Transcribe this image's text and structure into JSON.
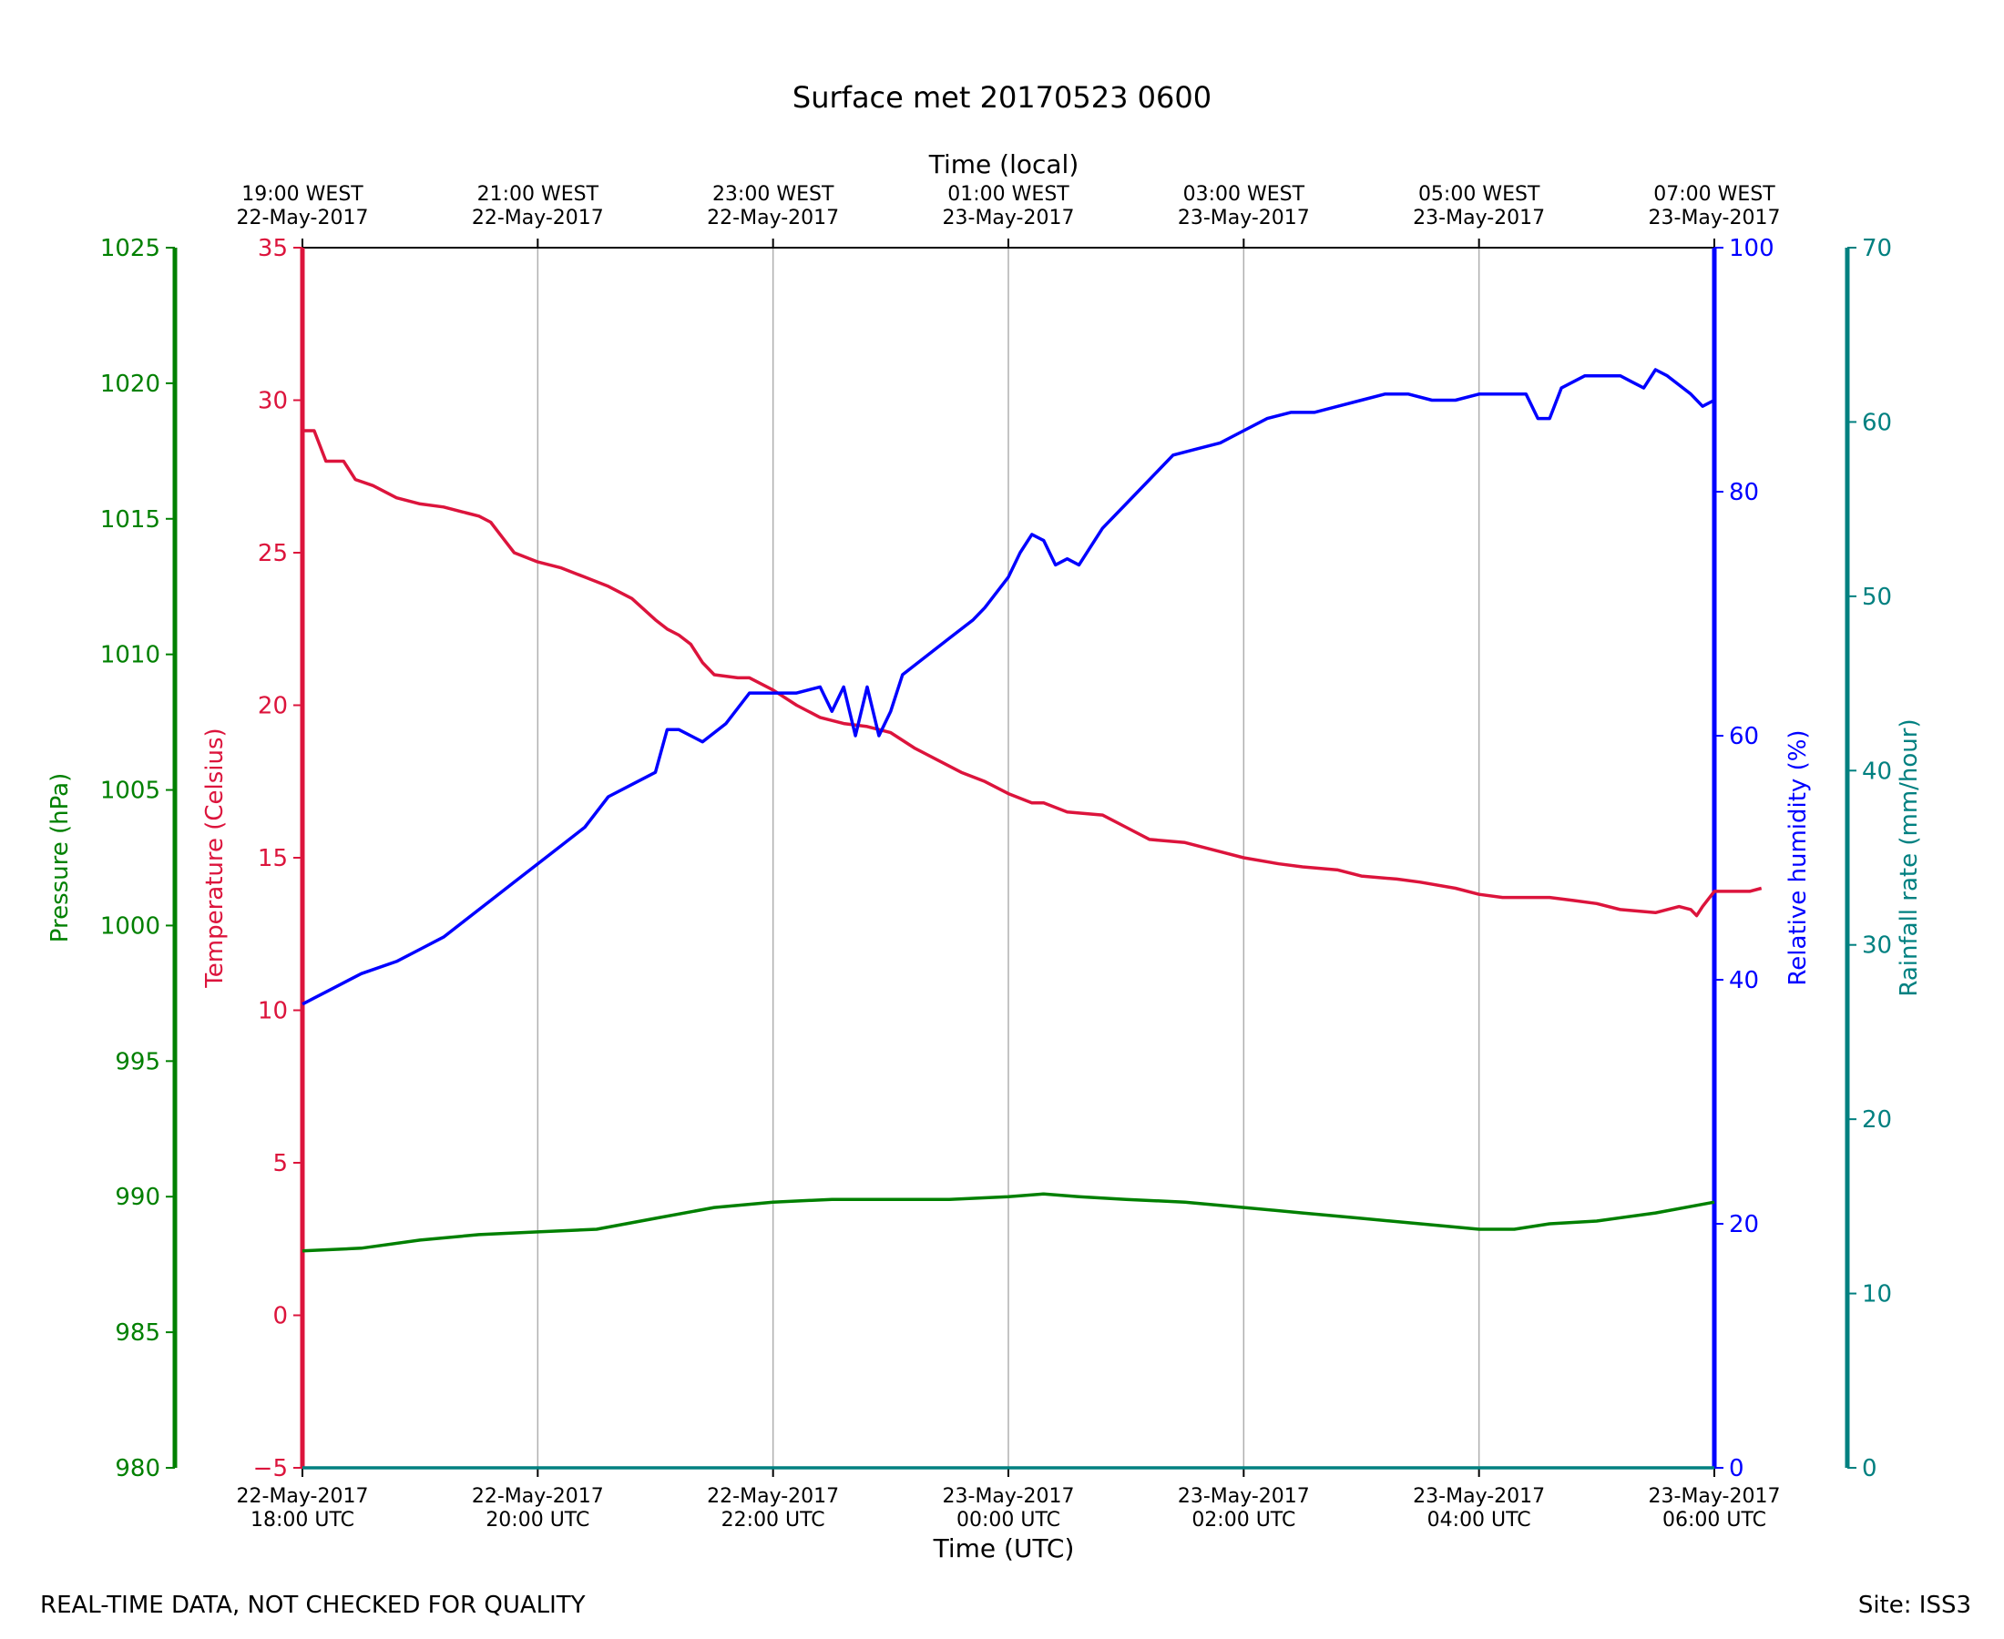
{
  "chart_data": {
    "type": "line",
    "title": "Surface met 20170523 0600",
    "top_axis_label": "Time (local)",
    "bottom_axis_label": "Time (UTC)",
    "x_range_hours_utc": [
      0,
      12
    ],
    "x_ticks": [
      {
        "hour": 0,
        "utc": [
          "22-May-2017",
          "18:00 UTC"
        ],
        "local": [
          "19:00 WEST",
          "22-May-2017"
        ]
      },
      {
        "hour": 2,
        "utc": [
          "22-May-2017",
          "20:00 UTC"
        ],
        "local": [
          "21:00 WEST",
          "22-May-2017"
        ]
      },
      {
        "hour": 4,
        "utc": [
          "22-May-2017",
          "22:00 UTC"
        ],
        "local": [
          "23:00 WEST",
          "22-May-2017"
        ]
      },
      {
        "hour": 6,
        "utc": [
          "23-May-2017",
          "00:00 UTC"
        ],
        "local": [
          "01:00 WEST",
          "23-May-2017"
        ]
      },
      {
        "hour": 8,
        "utc": [
          "23-May-2017",
          "02:00 UTC"
        ],
        "local": [
          "03:00 WEST",
          "23-May-2017"
        ]
      },
      {
        "hour": 10,
        "utc": [
          "23-May-2017",
          "04:00 UTC"
        ],
        "local": [
          "05:00 WEST",
          "23-May-2017"
        ]
      },
      {
        "hour": 12,
        "utc": [
          "23-May-2017",
          "06:00 UTC"
        ],
        "local": [
          "07:00 WEST",
          "23-May-2017"
        ]
      }
    ],
    "axes": {
      "pressure": {
        "label": "Pressure (hPa)",
        "color": "#008000",
        "range": [
          980,
          1025
        ],
        "ticks": [
          980,
          985,
          990,
          995,
          1000,
          1005,
          1010,
          1015,
          1020,
          1025
        ]
      },
      "temperature": {
        "label": "Temperature (Celsius)",
        "color": "#dc143c",
        "range": [
          -5,
          35
        ],
        "ticks": [
          -5,
          0,
          5,
          10,
          15,
          20,
          25,
          30,
          35
        ],
        "tick_labels": [
          "−5",
          "0",
          "5",
          "10",
          "15",
          "20",
          "25",
          "30",
          "35"
        ]
      },
      "humidity": {
        "label": "Relative humidity (%)",
        "color": "#0000ff",
        "range": [
          0,
          100
        ],
        "ticks": [
          0,
          20,
          40,
          60,
          80,
          100
        ]
      },
      "rainfall": {
        "label": "Rainfall rate (mm/hour)",
        "color": "#008080",
        "range": [
          0,
          70
        ],
        "ticks": [
          0,
          10,
          20,
          30,
          40,
          50,
          60,
          70
        ]
      }
    },
    "series": [
      {
        "name": "Temperature",
        "axis": "temperature",
        "color": "#dc143c",
        "points": [
          [
            0,
            29
          ],
          [
            0.1,
            29
          ],
          [
            0.2,
            28
          ],
          [
            0.35,
            28
          ],
          [
            0.45,
            27.4
          ],
          [
            0.6,
            27.2
          ],
          [
            0.8,
            26.8
          ],
          [
            1.0,
            26.6
          ],
          [
            1.2,
            26.5
          ],
          [
            1.4,
            26.3
          ],
          [
            1.5,
            26.2
          ],
          [
            1.6,
            26
          ],
          [
            1.7,
            25.5
          ],
          [
            1.8,
            25
          ],
          [
            2.0,
            24.7
          ],
          [
            2.2,
            24.5
          ],
          [
            2.4,
            24.2
          ],
          [
            2.6,
            23.9
          ],
          [
            2.8,
            23.5
          ],
          [
            3.0,
            22.8
          ],
          [
            3.1,
            22.5
          ],
          [
            3.2,
            22.3
          ],
          [
            3.3,
            22
          ],
          [
            3.4,
            21.4
          ],
          [
            3.5,
            21
          ],
          [
            3.7,
            20.9
          ],
          [
            3.8,
            20.9
          ],
          [
            4.0,
            20.5
          ],
          [
            4.2,
            20
          ],
          [
            4.4,
            19.6
          ],
          [
            4.6,
            19.4
          ],
          [
            4.8,
            19.3
          ],
          [
            5.0,
            19.1
          ],
          [
            5.2,
            18.6
          ],
          [
            5.4,
            18.2
          ],
          [
            5.6,
            17.8
          ],
          [
            5.8,
            17.5
          ],
          [
            6.0,
            17.1
          ],
          [
            6.2,
            16.8
          ],
          [
            6.3,
            16.8
          ],
          [
            6.5,
            16.5
          ],
          [
            6.8,
            16.4
          ],
          [
            7.0,
            16
          ],
          [
            7.2,
            15.6
          ],
          [
            7.5,
            15.5
          ],
          [
            7.8,
            15.2
          ],
          [
            8.0,
            15
          ],
          [
            8.3,
            14.8
          ],
          [
            8.5,
            14.7
          ],
          [
            8.8,
            14.6
          ],
          [
            9.0,
            14.4
          ],
          [
            9.3,
            14.3
          ],
          [
            9.5,
            14.2
          ],
          [
            9.8,
            14
          ],
          [
            10.0,
            13.8
          ],
          [
            10.2,
            13.7
          ],
          [
            10.6,
            13.7
          ],
          [
            10.8,
            13.6
          ],
          [
            11.0,
            13.5
          ],
          [
            11.2,
            13.3
          ],
          [
            11.5,
            13.2
          ],
          [
            11.6,
            13.3
          ],
          [
            11.7,
            13.4
          ],
          [
            11.8,
            13.3
          ],
          [
            11.85,
            13.1
          ],
          [
            11.9,
            13.4
          ],
          [
            12.0,
            13.9
          ],
          [
            12.2,
            13.9
          ],
          [
            12.3,
            13.9
          ],
          [
            12.4,
            14.0
          ]
        ]
      },
      {
        "name": "Relative humidity",
        "axis": "humidity",
        "color": "#0000ff",
        "points": [
          [
            0,
            38
          ],
          [
            0.1,
            38.5
          ],
          [
            0.2,
            39
          ],
          [
            0.3,
            39.5
          ],
          [
            0.5,
            40.5
          ],
          [
            0.8,
            41.5
          ],
          [
            1.0,
            42.5
          ],
          [
            1.2,
            43.5
          ],
          [
            1.4,
            45
          ],
          [
            1.6,
            46.5
          ],
          [
            1.8,
            48
          ],
          [
            2.0,
            49.5
          ],
          [
            2.2,
            51
          ],
          [
            2.4,
            52.5
          ],
          [
            2.6,
            55
          ],
          [
            2.8,
            56
          ],
          [
            3.0,
            57
          ],
          [
            3.1,
            60.5
          ],
          [
            3.2,
            60.5
          ],
          [
            3.4,
            59.5
          ],
          [
            3.6,
            61
          ],
          [
            3.8,
            63.5
          ],
          [
            4.0,
            63.5
          ],
          [
            4.2,
            63.5
          ],
          [
            4.4,
            64
          ],
          [
            4.5,
            62
          ],
          [
            4.6,
            64
          ],
          [
            4.7,
            60
          ],
          [
            4.8,
            64
          ],
          [
            4.9,
            60
          ],
          [
            5.0,
            62
          ],
          [
            5.1,
            65
          ],
          [
            5.3,
            66.5
          ],
          [
            5.5,
            68
          ],
          [
            5.7,
            69.5
          ],
          [
            5.8,
            70.5
          ],
          [
            6.0,
            73
          ],
          [
            6.1,
            75
          ],
          [
            6.2,
            76.5
          ],
          [
            6.3,
            76
          ],
          [
            6.4,
            74
          ],
          [
            6.5,
            74.5
          ],
          [
            6.6,
            74
          ],
          [
            6.8,
            77
          ],
          [
            7.0,
            79
          ],
          [
            7.2,
            81
          ],
          [
            7.4,
            83
          ],
          [
            7.6,
            83.5
          ],
          [
            7.8,
            84
          ],
          [
            8.0,
            85
          ],
          [
            8.2,
            86
          ],
          [
            8.4,
            86.5
          ],
          [
            8.6,
            86.5
          ],
          [
            8.8,
            87
          ],
          [
            9.0,
            87.5
          ],
          [
            9.2,
            88
          ],
          [
            9.4,
            88
          ],
          [
            9.6,
            87.5
          ],
          [
            9.8,
            87.5
          ],
          [
            10.0,
            88
          ],
          [
            10.2,
            88
          ],
          [
            10.4,
            88
          ],
          [
            10.5,
            86
          ],
          [
            10.6,
            86
          ],
          [
            10.7,
            88.5
          ],
          [
            10.9,
            89.5
          ],
          [
            11.0,
            89.5
          ],
          [
            11.2,
            89.5
          ],
          [
            11.3,
            89
          ],
          [
            11.4,
            88.5
          ],
          [
            11.5,
            90
          ],
          [
            11.6,
            89.5
          ],
          [
            11.8,
            88
          ],
          [
            11.9,
            87
          ],
          [
            12.0,
            87.5
          ]
        ]
      },
      {
        "name": "Pressure",
        "axis": "pressure",
        "color": "#008000",
        "points": [
          [
            0,
            988
          ],
          [
            0.5,
            988.1
          ],
          [
            1.0,
            988.4
          ],
          [
            1.5,
            988.6
          ],
          [
            2.0,
            988.7
          ],
          [
            2.5,
            988.8
          ],
          [
            3.0,
            989.2
          ],
          [
            3.5,
            989.6
          ],
          [
            4.0,
            989.8
          ],
          [
            4.5,
            989.9
          ],
          [
            5.0,
            989.9
          ],
          [
            5.5,
            989.9
          ],
          [
            6.0,
            990.0
          ],
          [
            6.3,
            990.1
          ],
          [
            6.6,
            990.0
          ],
          [
            7.0,
            989.9
          ],
          [
            7.5,
            989.8
          ],
          [
            8.0,
            989.6
          ],
          [
            8.5,
            989.4
          ],
          [
            9.0,
            989.2
          ],
          [
            9.5,
            989.0
          ],
          [
            10.0,
            988.8
          ],
          [
            10.3,
            988.8
          ],
          [
            10.6,
            989.0
          ],
          [
            11.0,
            989.1
          ],
          [
            11.5,
            989.4
          ],
          [
            12.0,
            989.8
          ]
        ]
      },
      {
        "name": "Rainfall rate",
        "axis": "rainfall",
        "color": "#008080",
        "points": [
          [
            0,
            0
          ],
          [
            12,
            0
          ]
        ]
      }
    ],
    "grid": "vertical"
  },
  "footer": {
    "left": "REAL-TIME DATA, NOT CHECKED FOR QUALITY",
    "right": "Site: ISS3"
  }
}
